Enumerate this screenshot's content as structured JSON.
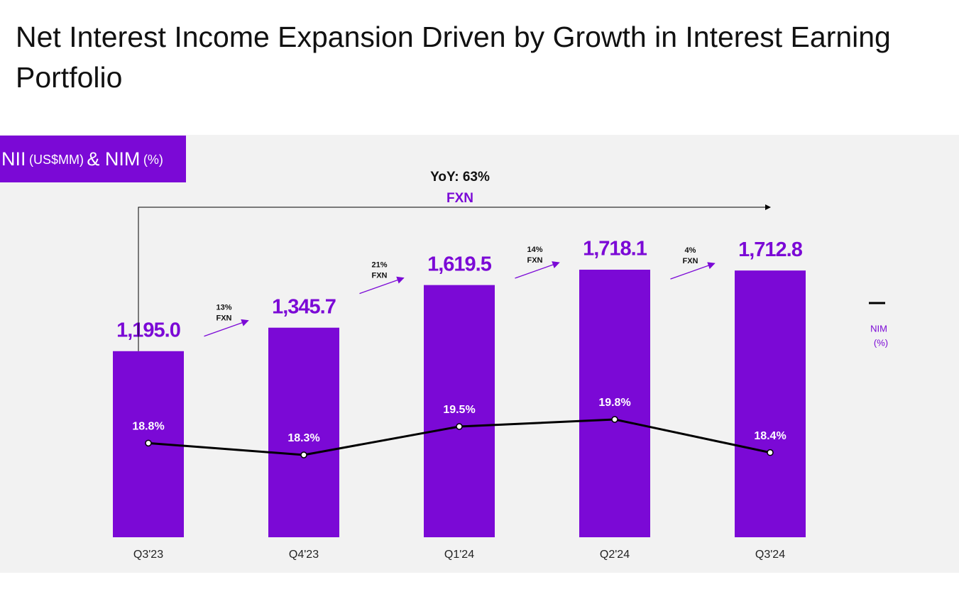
{
  "title": "Net Interest Income Expansion Driven by Growth in Interest Earning Portfolio",
  "chart_data": {
    "type": "bar",
    "label_parts": [
      "NII",
      "(US$MM)",
      "& NIM",
      "(%)"
    ],
    "categories": [
      "Q3'23",
      "Q4'23",
      "Q1'24",
      "Q2'24",
      "Q3'24"
    ],
    "values": [
      1195.0,
      1345.7,
      1619.5,
      1718.1,
      1712.8
    ],
    "value_labels": [
      "1,195.0",
      "1,345.7",
      "1,619.5",
      "1,718.1",
      "1,712.8"
    ],
    "color": "#7b09d6",
    "line": {
      "name": "NIM",
      "unit": "(%)",
      "color": "#000000",
      "values": [
        18.8,
        18.3,
        19.5,
        19.8,
        18.4
      ],
      "value_labels": [
        "18.8%",
        "18.3%",
        "19.5%",
        "19.8%",
        "18.4%"
      ]
    },
    "growth": [
      {
        "label": "13%",
        "note": "FXN"
      },
      {
        "label": "21%",
        "note": "FXN"
      },
      {
        "label": "14%",
        "note": "FXN"
      },
      {
        "label": "4%",
        "note": "FXN"
      }
    ],
    "yoy": {
      "label": "YoY: 63%",
      "note": "FXN"
    }
  }
}
